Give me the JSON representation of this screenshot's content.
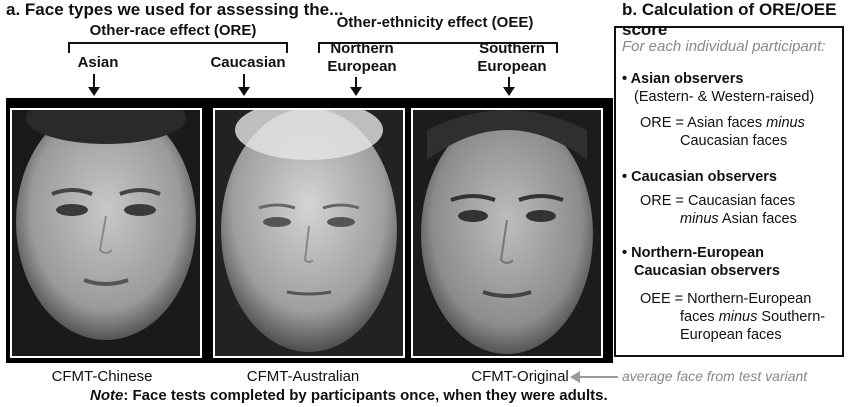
{
  "panel_a": {
    "title": "a. Face types we used for assessing the...",
    "ore": {
      "label": "Other-race effect (ORE)"
    },
    "oee": {
      "label": "Other-ethnicity effect (OEE)"
    },
    "face_labels": {
      "asian": "Asian",
      "caucasian": "Caucasian",
      "northern_1": "Northern",
      "northern_2": "European",
      "southern_1": "Southern",
      "southern_2": "European"
    },
    "variants": {
      "chinese": "CFMT-Chinese",
      "australian": "CFMT-Australian",
      "original": "CFMT-Original"
    },
    "avg_caption": "average face from test variant",
    "note_label": "Note",
    "note_text": ": Face tests completed by participants once, when they were adults."
  },
  "panel_b": {
    "title": "b. Calculation of ORE/OEE score",
    "intro": "For each individual participant:",
    "asian": {
      "head": "Asian observers",
      "sub": "(Eastern- & Western-raised)",
      "l1a": "ORE = Asian faces ",
      "l1b": "minus",
      "l2": "Caucasian faces"
    },
    "caucasian": {
      "head": "Caucasian observers",
      "l1": "ORE = Caucasian faces",
      "l2a": "minus",
      "l2b": " Asian faces"
    },
    "northern": {
      "head1": "Northern-European",
      "head2": "Caucasian observers",
      "l1": "OEE = Northern-European",
      "l2a": "faces ",
      "l2b": "minus",
      "l2c": " Southern-",
      "l3": "European faces"
    }
  }
}
